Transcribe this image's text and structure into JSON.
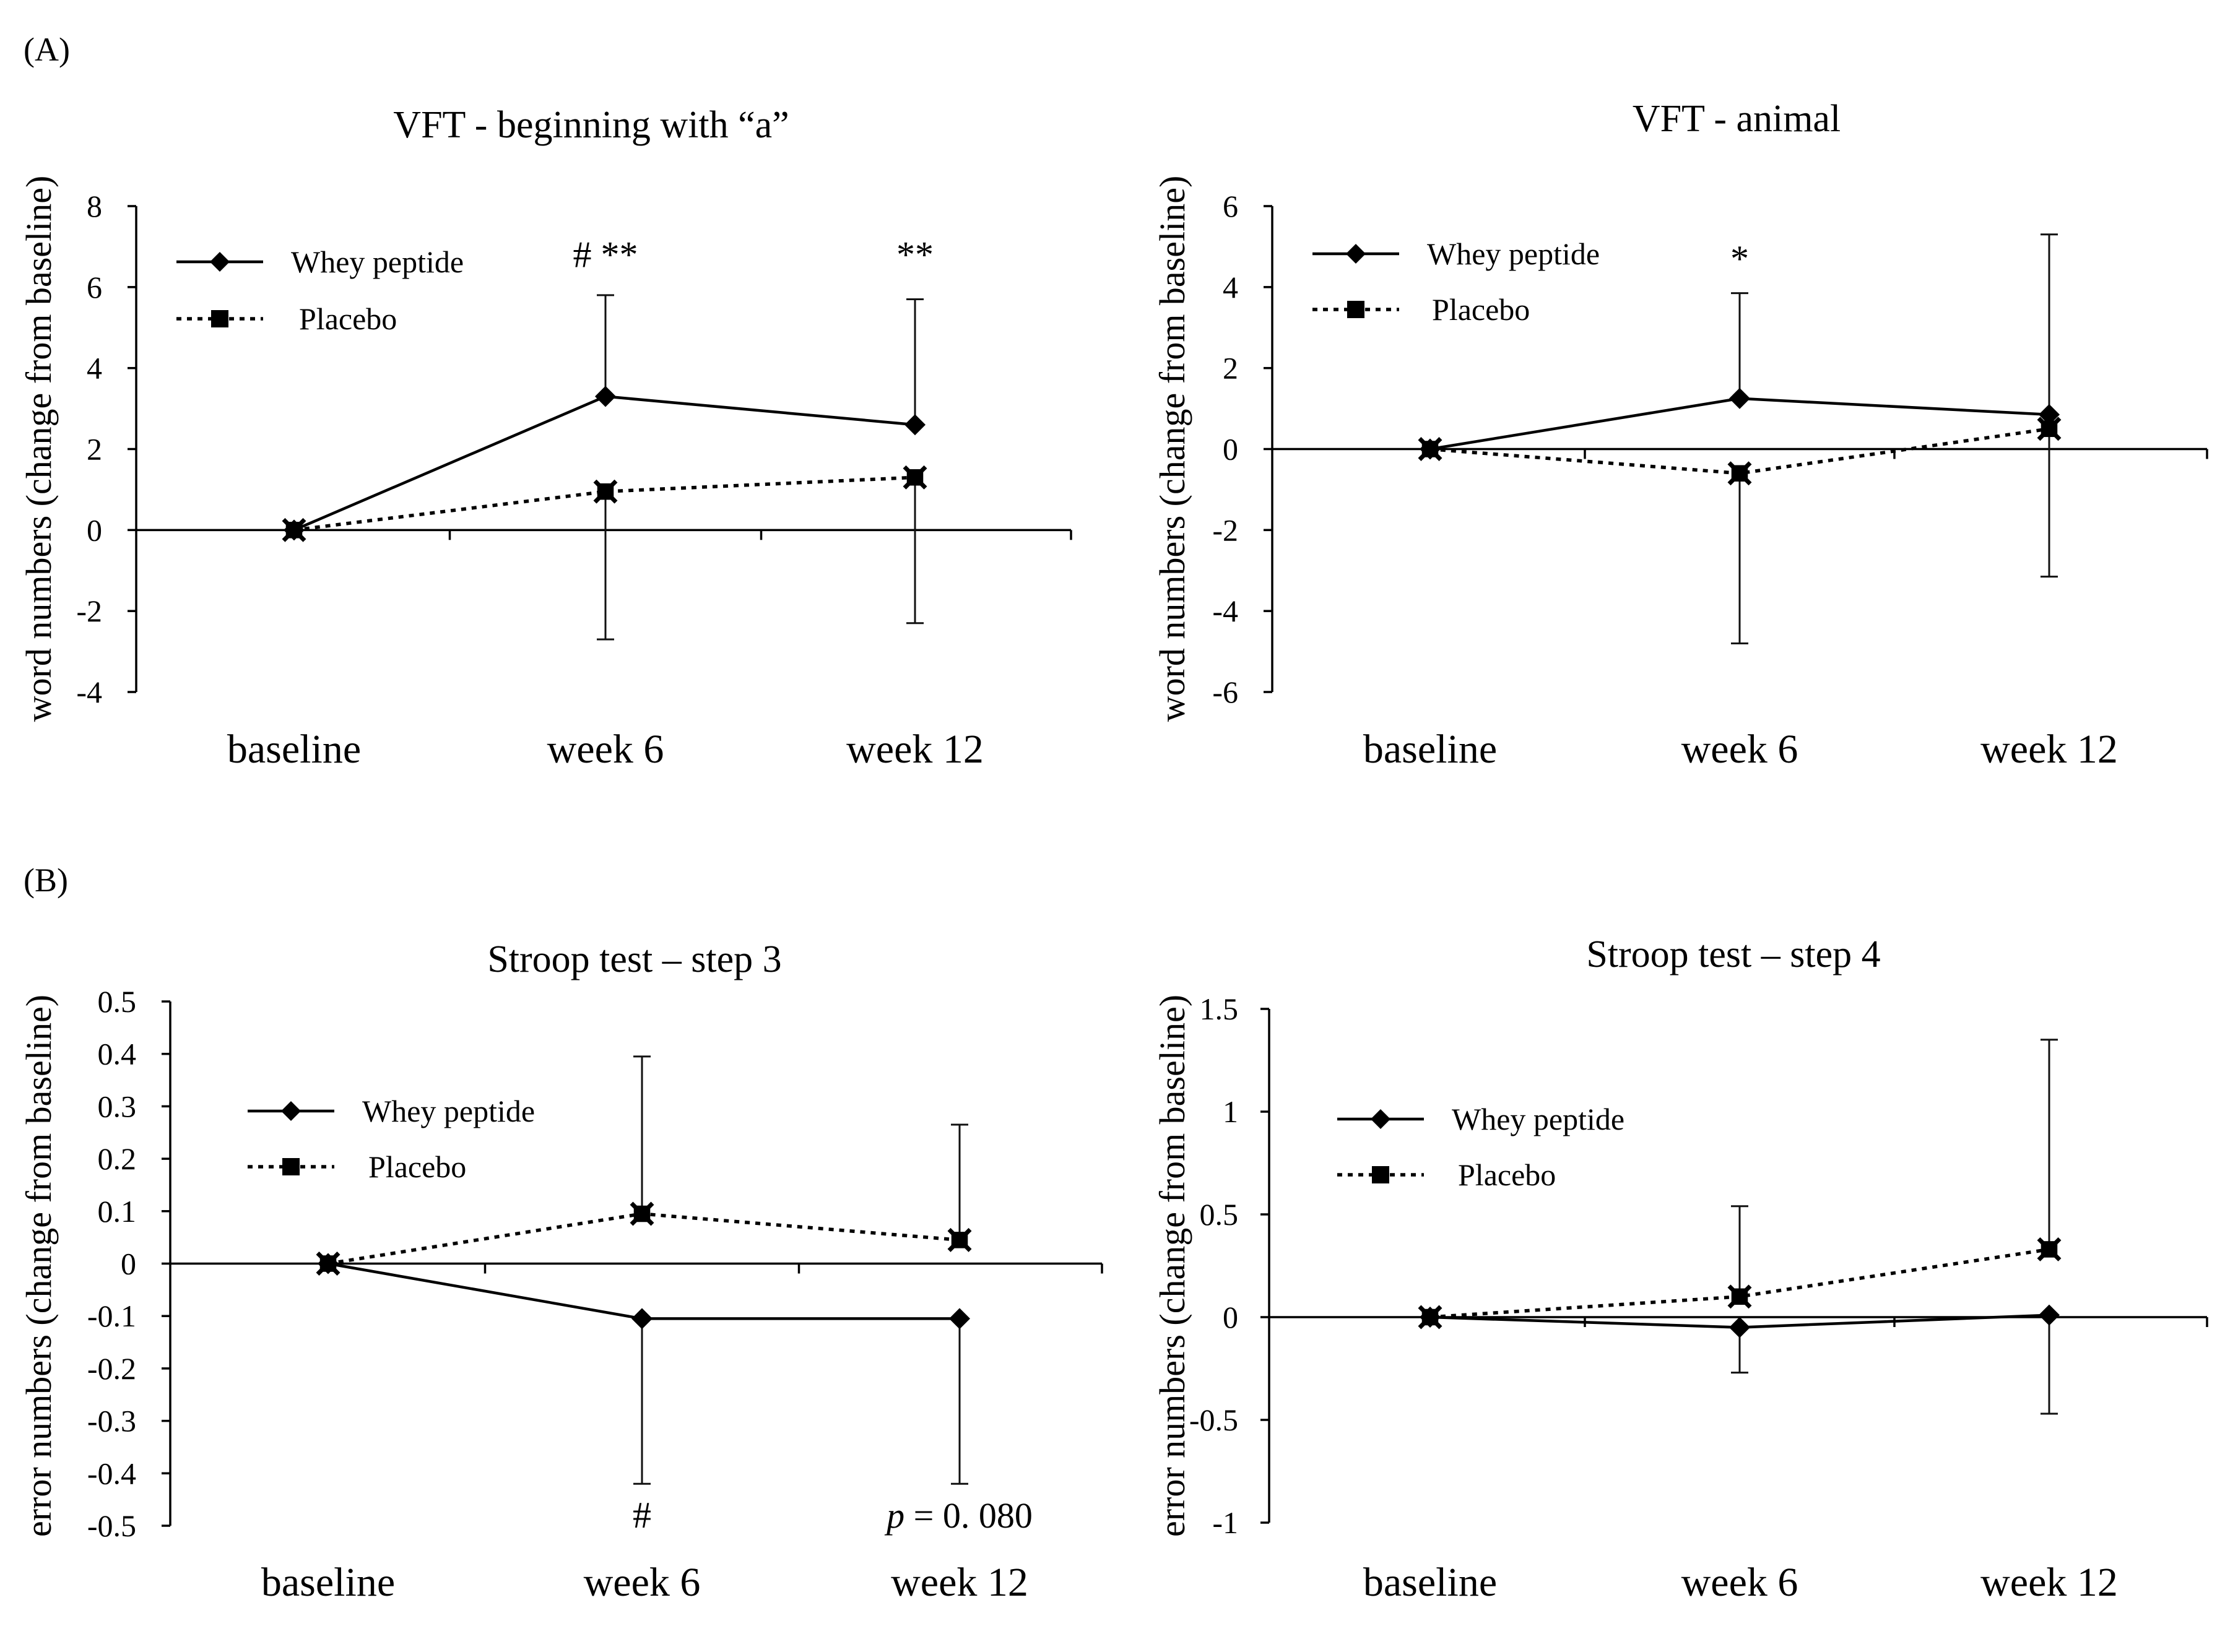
{
  "panel_labels": {
    "a": "(A)",
    "b": "(B)"
  },
  "chart_data": [
    {
      "type": "line",
      "title": "VFT - beginning with “a”",
      "xlabel": "",
      "ylabel": "word numbers (change from baseline)",
      "categories": [
        "baseline",
        "week 6",
        "week 12"
      ],
      "ylim": [
        -4,
        8
      ],
      "yticks": [
        "-4",
        "-2",
        "0",
        "2",
        "4",
        "6",
        "8"
      ],
      "legend_position": "top-left",
      "series": [
        {
          "name": "Whey peptide",
          "style": "solid",
          "marker": "diamond",
          "values": [
            0,
            3.3,
            2.6
          ],
          "err_plus": [
            0,
            2.5,
            3.1
          ],
          "err_minus": [
            0,
            0,
            0
          ]
        },
        {
          "name": "Placebo",
          "style": "dotted",
          "marker": "square",
          "values": [
            0,
            0.95,
            1.3
          ],
          "err_plus": [
            0,
            0,
            0
          ],
          "err_minus": [
            0,
            3.65,
            3.6
          ]
        }
      ],
      "annotations": [
        {
          "text": "# **",
          "category": "week 6",
          "y": 6.8
        },
        {
          "text": "**",
          "category": "week 12",
          "y": 6.8
        }
      ]
    },
    {
      "type": "line",
      "title": "VFT - animal",
      "xlabel": "",
      "ylabel": "word numbers (change from baseline)",
      "categories": [
        "baseline",
        "week 6",
        "week 12"
      ],
      "ylim": [
        -6,
        6
      ],
      "yticks": [
        "-6",
        "-4",
        "-2",
        "0",
        "2",
        "4",
        "6"
      ],
      "legend_position": "top-left",
      "series": [
        {
          "name": "Whey peptide",
          "style": "solid",
          "marker": "diamond",
          "values": [
            0,
            1.25,
            0.85
          ],
          "err_plus": [
            0,
            2.6,
            4.45
          ],
          "err_minus": [
            0,
            0,
            0
          ]
        },
        {
          "name": "Placebo",
          "style": "dotted",
          "marker": "square",
          "values": [
            0,
            -0.6,
            0.5
          ],
          "err_plus": [
            0,
            0,
            0
          ],
          "err_minus": [
            0,
            4.2,
            3.65
          ]
        }
      ],
      "annotations": [
        {
          "text": "*",
          "category": "week 6",
          "y": 4.7
        }
      ]
    },
    {
      "type": "line",
      "title": "Stroop test – step 3",
      "xlabel": "",
      "ylabel": "error numbers (change from baseline)",
      "categories": [
        "baseline",
        "week 6",
        "week 12"
      ],
      "ylim": [
        -0.5,
        0.5
      ],
      "yticks": [
        "-0.5",
        "-0.4",
        "-0.3",
        "-0.2",
        "-0.1",
        "0",
        "0.1",
        "0.2",
        "0.3",
        "0.4",
        "0.5"
      ],
      "legend_position": "top-left",
      "series": [
        {
          "name": "Whey peptide",
          "style": "solid",
          "marker": "diamond",
          "values": [
            0,
            -0.105,
            -0.105
          ],
          "err_plus": [
            0,
            0,
            0
          ],
          "err_minus": [
            0,
            0.315,
            0.315
          ]
        },
        {
          "name": "Placebo",
          "style": "dotted",
          "marker": "square",
          "values": [
            0,
            0.095,
            0.045
          ],
          "err_plus": [
            0,
            0.3,
            0.22
          ],
          "err_minus": [
            0,
            0,
            0
          ]
        }
      ],
      "annotations": [
        {
          "text": "#",
          "category": "week 6",
          "y": -0.48
        }
      ],
      "p_annotation": {
        "p": "p",
        "rest": " = 0. 080",
        "category": "week 12",
        "y": -0.48
      }
    },
    {
      "type": "line",
      "title": "Stroop test – step 4",
      "xlabel": "",
      "ylabel": "error numbers (change from baseline)",
      "categories": [
        "baseline",
        "week 6",
        "week 12"
      ],
      "ylim": [
        -1,
        1.5
      ],
      "yticks": [
        "-1",
        "-0.5",
        "0",
        "0.5",
        "1",
        "1.5"
      ],
      "legend_position": "top-left",
      "series": [
        {
          "name": "Whey peptide",
          "style": "solid",
          "marker": "diamond",
          "values": [
            0,
            -0.05,
            0.01
          ],
          "err_plus": [
            0,
            0,
            0
          ],
          "err_minus": [
            0,
            0.22,
            0.48
          ]
        },
        {
          "name": "Placebo",
          "style": "dotted",
          "marker": "square",
          "values": [
            0,
            0.1,
            0.33
          ],
          "err_plus": [
            0,
            0.44,
            1.02
          ],
          "err_minus": [
            0,
            0,
            0
          ]
        }
      ],
      "annotations": []
    }
  ]
}
